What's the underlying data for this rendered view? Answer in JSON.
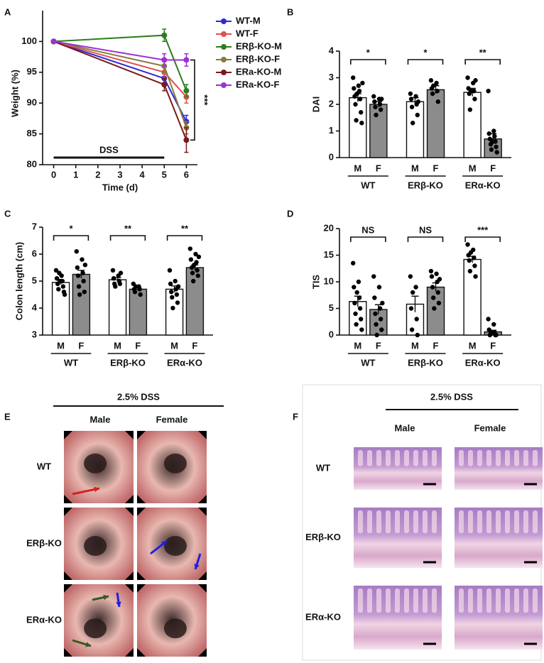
{
  "chart_data": [
    {
      "panel": "A",
      "type": "line",
      "xlabel": "Time (d)",
      "ylabel": "Weight (%)",
      "x": [
        0,
        5,
        6
      ],
      "xlim": [
        -0.5,
        6.5
      ],
      "xticks": [
        0,
        1,
        2,
        3,
        4,
        5,
        6
      ],
      "ylim": [
        80,
        105
      ],
      "yticks": [
        80,
        85,
        90,
        95,
        100
      ],
      "series": [
        {
          "name": "WT-M",
          "color": "#2b2bd9",
          "values": [
            100,
            94,
            87
          ],
          "errors": [
            0,
            1,
            1
          ]
        },
        {
          "name": "WT-F",
          "color": "#e05050",
          "values": [
            100,
            95,
            91
          ],
          "errors": [
            0,
            1,
            1
          ]
        },
        {
          "name": "ERβ-KO-M",
          "color": "#2e7d1e",
          "values": [
            100,
            101,
            92
          ],
          "errors": [
            0,
            1,
            1
          ]
        },
        {
          "name": "ERβ-KO-F",
          "color": "#8a7a3a",
          "values": [
            100,
            96,
            86
          ],
          "errors": [
            0,
            1,
            1
          ]
        },
        {
          "name": "ERa-KO-M",
          "color": "#7a1a1a",
          "values": [
            100,
            93,
            84
          ],
          "errors": [
            0,
            1,
            2
          ]
        },
        {
          "name": "ERa-KO-F",
          "color": "#9b30d9",
          "values": [
            100,
            97,
            97
          ],
          "errors": [
            0,
            1,
            1
          ]
        }
      ],
      "annotation": "***",
      "dss_label": "DSS",
      "dss_range": [
        0,
        5
      ]
    },
    {
      "panel": "B",
      "type": "bar",
      "ylabel": "DAI",
      "categories": [
        "M",
        "F",
        "M",
        "F",
        "M",
        "F"
      ],
      "groups": [
        "WT",
        "ERβ-KO",
        "ERα-KO"
      ],
      "significance": [
        "*",
        "*",
        "**"
      ],
      "ylim": [
        0,
        4
      ],
      "yticks": [
        0,
        1,
        2,
        3,
        4
      ],
      "bar_colors": [
        "#ffffff",
        "#8c8c8c"
      ],
      "point_color": "#000000",
      "values": [
        2.25,
        2.0,
        2.1,
        2.55,
        2.45,
        0.7
      ],
      "errors": [
        0.15,
        0.1,
        0.15,
        0.15,
        0.15,
        0.2
      ],
      "points": [
        [
          3.0,
          2.7,
          2.6,
          2.5,
          2.3,
          2.2,
          2.0,
          1.7,
          1.4,
          1.3,
          2.4,
          2.8
        ],
        [
          2.3,
          2.2,
          2.1,
          2.0,
          1.9,
          1.8,
          1.6,
          2.2
        ],
        [
          2.4,
          2.3,
          2.2,
          2.0,
          1.9,
          1.6,
          1.3,
          2.1
        ],
        [
          2.9,
          2.8,
          2.6,
          2.5,
          2.4,
          2.1,
          2.7
        ],
        [
          3.0,
          2.8,
          2.6,
          2.5,
          2.4,
          2.2,
          1.8,
          2.9,
          2.5
        ],
        [
          2.5,
          1.0,
          0.9,
          0.8,
          0.7,
          0.6,
          0.5,
          0.4,
          0.3,
          0.2,
          0.6
        ]
      ]
    },
    {
      "panel": "C",
      "type": "bar",
      "ylabel": "Colon length (cm)",
      "categories": [
        "M",
        "F",
        "M",
        "F",
        "M",
        "F"
      ],
      "groups": [
        "WT",
        "ERβ-KO",
        "ERα-KO"
      ],
      "significance": [
        "*",
        "**",
        "**"
      ],
      "ylim": [
        3,
        7
      ],
      "yticks": [
        3,
        4,
        5,
        6,
        7
      ],
      "bar_colors": [
        "#ffffff",
        "#8c8c8c"
      ],
      "point_color": "#000000",
      "values": [
        4.95,
        5.25,
        5.05,
        4.7,
        4.7,
        5.5
      ],
      "errors": [
        0.08,
        0.15,
        0.08,
        0.05,
        0.12,
        0.1
      ],
      "points": [
        [
          5.4,
          5.2,
          5.1,
          5.0,
          4.9,
          4.8,
          4.7,
          4.6,
          5.3,
          4.5,
          5.0
        ],
        [
          6.1,
          5.8,
          5.5,
          5.3,
          5.2,
          5.0,
          4.8,
          4.6,
          4.5,
          5.6
        ],
        [
          5.4,
          5.2,
          5.1,
          5.0,
          4.9,
          4.9,
          4.8,
          5.3
        ],
        [
          4.9,
          4.8,
          4.7,
          4.7,
          4.6,
          4.5,
          4.8
        ],
        [
          5.4,
          5.0,
          4.9,
          4.7,
          4.6,
          4.5,
          4.4,
          4.2,
          4.0,
          4.8
        ],
        [
          6.2,
          6.0,
          5.8,
          5.7,
          5.5,
          5.4,
          5.3,
          5.2,
          5.0,
          5.9,
          5.6
        ]
      ]
    },
    {
      "panel": "D",
      "type": "bar",
      "ylabel": "TIS",
      "categories": [
        "M",
        "F",
        "M",
        "F",
        "M",
        "F"
      ],
      "groups": [
        "WT",
        "ERβ-KO",
        "ERα-KO"
      ],
      "significance": [
        "NS",
        "NS",
        "***"
      ],
      "ylim": [
        0,
        20
      ],
      "yticks": [
        0,
        5,
        10,
        15,
        20
      ],
      "bar_colors": [
        "#ffffff",
        "#8c8c8c"
      ],
      "point_color": "#000000",
      "values": [
        6.3,
        4.8,
        5.8,
        9.0,
        14.2,
        0.6
      ],
      "errors": [
        1.0,
        0.9,
        1.5,
        0.8,
        0.6,
        0.3
      ],
      "points": [
        [
          13.5,
          10,
          9,
          7,
          6,
          5,
          4,
          3,
          2,
          1,
          8
        ],
        [
          11,
          9,
          7,
          5,
          4,
          3,
          2,
          1,
          0,
          6
        ],
        [
          11,
          9,
          5,
          3,
          1,
          0,
          8
        ],
        [
          12,
          11.5,
          11,
          10,
          9,
          8,
          7,
          6,
          5,
          10.5
        ],
        [
          17,
          16,
          15,
          14.5,
          14,
          13,
          12,
          11,
          15.5
        ],
        [
          3,
          2,
          1,
          0.5,
          0,
          0,
          0.2,
          0,
          0.5
        ]
      ]
    }
  ],
  "image_panels": [
    {
      "panel": "E",
      "header": "2.5% DSS",
      "columns": [
        "Male",
        "Female"
      ],
      "rows": [
        "WT",
        "ERβ-KO",
        "ERα-KO"
      ]
    },
    {
      "panel": "F",
      "header": "2.5% DSS",
      "columns": [
        "Male",
        "Female"
      ],
      "rows": [
        "WT",
        "ERβ-KO",
        "ERα-KO"
      ]
    }
  ]
}
